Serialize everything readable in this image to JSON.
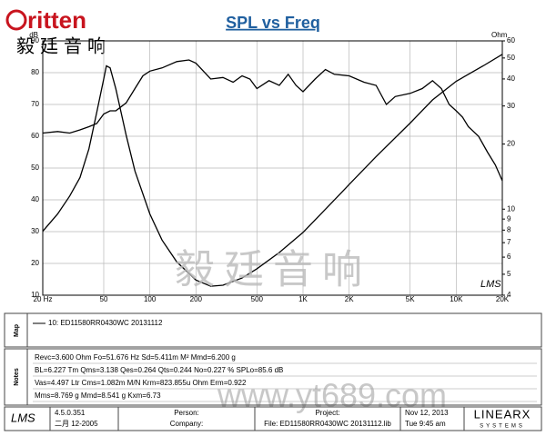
{
  "header": {
    "logo": "ritten",
    "logo_cn": "毅廷音响"
  },
  "chart_data": {
    "type": "line",
    "title": "SPL vs Freq",
    "y_label": "dB",
    "y2_label": "Ohm",
    "xlog": true,
    "y2log": true,
    "grid": true,
    "xlim": [
      20,
      20000
    ],
    "xticks": [
      {
        "value": 20,
        "label": "20 Hz"
      },
      50,
      100,
      200,
      500,
      {
        "value": 1000,
        "label": "1K"
      },
      {
        "value": 2000,
        "label": "2K"
      },
      {
        "value": 5000,
        "label": "5K"
      },
      {
        "value": 10000,
        "label": "10K"
      },
      {
        "value": 20000,
        "label": "20K"
      }
    ],
    "ylim": [
      10,
      90
    ],
    "yticks": [
      10,
      20,
      30,
      40,
      50,
      60,
      70,
      80,
      90
    ],
    "y2lim": [
      4,
      60
    ],
    "y2ticks": [
      4,
      5,
      6,
      7,
      8,
      9,
      10,
      20,
      30,
      40,
      50,
      60
    ],
    "series": [
      {
        "name": "SPL",
        "color": "#000000",
        "x": [
          20,
          25,
          30,
          35,
          40,
          45,
          50,
          55,
          60,
          70,
          80,
          90,
          100,
          120,
          150,
          180,
          200,
          250,
          300,
          350,
          400,
          450,
          500,
          600,
          700,
          800,
          900,
          1000,
          1200,
          1400,
          1600,
          2000,
          2500,
          3000,
          3500,
          4000,
          5000,
          6000,
          7000,
          8000,
          9000,
          10000,
          11000,
          12000,
          14000,
          16000,
          18000,
          20000
        ],
        "values": [
          61,
          61.5,
          61,
          62,
          63,
          64,
          67,
          68,
          68,
          70.5,
          75,
          79,
          80.5,
          81.5,
          83.5,
          84,
          83,
          78,
          78.5,
          77,
          79,
          78,
          75,
          77.5,
          76,
          79.5,
          76,
          74,
          78,
          81,
          79.5,
          79,
          77,
          76,
          70,
          72.5,
          73.5,
          75,
          77.5,
          75,
          70,
          68,
          66,
          63,
          60,
          55,
          51,
          46
        ]
      },
      {
        "name": "Impedance",
        "color": "#000000",
        "axis": "y2",
        "x": [
          20,
          25,
          30,
          35,
          40,
          45,
          50,
          52,
          55,
          60,
          70,
          80,
          100,
          120,
          150,
          200,
          250,
          300,
          400,
          500,
          700,
          1000,
          1500,
          2000,
          3000,
          5000,
          7000,
          10000,
          15000,
          20000
        ],
        "values": [
          7.9,
          9.5,
          11.5,
          14,
          19,
          28,
          40,
          46,
          45,
          36,
          22,
          15,
          9.5,
          7.2,
          5.7,
          4.7,
          4.4,
          4.45,
          4.8,
          5.3,
          6.3,
          7.8,
          10.5,
          13,
          17.5,
          25,
          32,
          39,
          46,
          52
        ]
      }
    ]
  },
  "watermark": {
    "cn": "毅廷音响",
    "url": "www.yt689.com"
  },
  "map": {
    "label": "Map",
    "legend": "10: ED11580RR0430WC  20131112"
  },
  "notes": {
    "label": "Notes",
    "lines": [
      "Revc=3.600 Ohm  Fo=51.676 Hz  Sd=5.411m M²  Mmd=6.200 g",
      "BL=6.227 Tm  Qms=3.138  Qes=0.264  Qts=0.244  No=0.227 %  SPLo=85.6 dB",
      "Vas=4.497 Ltr  Cms=1.082m M/N  Krm=823.855u Ohm  Erm=0.922",
      "Mms=8.769 g  Mmd=8.541 g  Kxm=6.73"
    ]
  },
  "footer": {
    "app": "LMS",
    "version": "4.5.0.351",
    "build": "二月 12-2005",
    "person": "Person:",
    "company": "Company:",
    "project": "Project:",
    "file": "File: ED11580RR0430WC 20131112.lib",
    "date": "Nov 12, 2013",
    "time": "Tue  9:45 am",
    "brand": "LINEARX",
    "brand_sub": "SYSTEMS"
  }
}
